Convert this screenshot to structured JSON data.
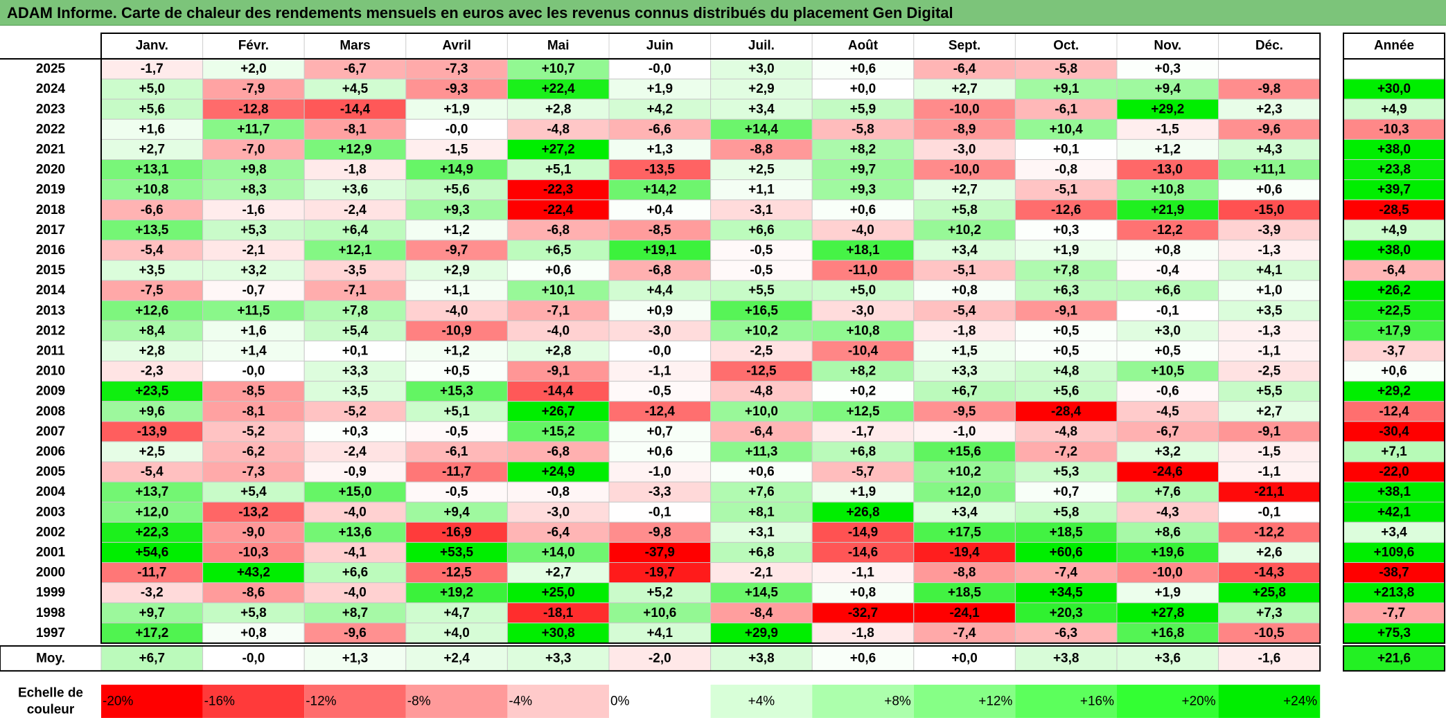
{
  "title": "ADAM Informe. Carte de chaleur des rendements mensuels en euros avec les revenus connus distribués du placement Gen Digital",
  "chart_data": {
    "type": "heatmap",
    "columns": [
      "Janv.",
      "Févr.",
      "Mars",
      "Avril",
      "Mai",
      "Juin",
      "Juil.",
      "Août",
      "Sept.",
      "Oct.",
      "Nov.",
      "Déc."
    ],
    "annual_label": "Année",
    "rows": [
      {
        "year": "2025",
        "values": [
          "-1,7",
          "+2,0",
          "-6,7",
          "-7,3",
          "+10,7",
          "-0,0",
          "+3,0",
          "+0,6",
          "-6,4",
          "-5,8",
          "+0,3",
          ""
        ],
        "annual": ""
      },
      {
        "year": "2024",
        "values": [
          "+5,0",
          "-7,9",
          "+4,5",
          "-9,3",
          "+22,4",
          "+1,9",
          "+2,9",
          "+0,0",
          "+2,7",
          "+9,1",
          "+9,4",
          "-9,8"
        ],
        "annual": "+30,0"
      },
      {
        "year": "2023",
        "values": [
          "+5,6",
          "-12,8",
          "-14,4",
          "+1,9",
          "+2,8",
          "+4,2",
          "+3,4",
          "+5,9",
          "-10,0",
          "-6,1",
          "+29,2",
          "+2,3"
        ],
        "annual": "+4,9"
      },
      {
        "year": "2022",
        "values": [
          "+1,6",
          "+11,7",
          "-8,1",
          "-0,0",
          "-4,8",
          "-6,6",
          "+14,4",
          "-5,8",
          "-8,9",
          "+10,4",
          "-1,5",
          "-9,6"
        ],
        "annual": "-10,3"
      },
      {
        "year": "2021",
        "values": [
          "+2,7",
          "-7,0",
          "+12,9",
          "-1,5",
          "+27,2",
          "+1,3",
          "-8,8",
          "+8,2",
          "-3,0",
          "+0,1",
          "+1,2",
          "+4,3"
        ],
        "annual": "+38,0"
      },
      {
        "year": "2020",
        "values": [
          "+13,1",
          "+9,8",
          "-1,8",
          "+14,9",
          "+5,1",
          "-13,5",
          "+2,5",
          "+9,7",
          "-10,0",
          "-0,8",
          "-13,0",
          "+11,1"
        ],
        "annual": "+23,8"
      },
      {
        "year": "2019",
        "values": [
          "+10,8",
          "+8,3",
          "+3,6",
          "+5,6",
          "-22,3",
          "+14,2",
          "+1,1",
          "+9,3",
          "+2,7",
          "-5,1",
          "+10,8",
          "+0,6"
        ],
        "annual": "+39,7"
      },
      {
        "year": "2018",
        "values": [
          "-6,6",
          "-1,6",
          "-2,4",
          "+9,3",
          "-22,4",
          "+0,4",
          "-3,1",
          "+0,6",
          "+5,8",
          "-12,6",
          "+21,9",
          "-15,0"
        ],
        "annual": "-28,5"
      },
      {
        "year": "2017",
        "values": [
          "+13,5",
          "+5,3",
          "+6,4",
          "+1,2",
          "-6,8",
          "-8,5",
          "+6,6",
          "-4,0",
          "+10,2",
          "+0,3",
          "-12,2",
          "-3,9"
        ],
        "annual": "+4,9"
      },
      {
        "year": "2016",
        "values": [
          "-5,4",
          "-2,1",
          "+12,1",
          "-9,7",
          "+6,5",
          "+19,1",
          "-0,5",
          "+18,1",
          "+3,4",
          "+1,9",
          "+0,8",
          "-1,3"
        ],
        "annual": "+38,0"
      },
      {
        "year": "2015",
        "values": [
          "+3,5",
          "+3,2",
          "-3,5",
          "+2,9",
          "+0,6",
          "-6,8",
          "-0,5",
          "-11,0",
          "-5,1",
          "+7,8",
          "-0,4",
          "+4,1"
        ],
        "annual": "-6,4"
      },
      {
        "year": "2014",
        "values": [
          "-7,5",
          "-0,7",
          "-7,1",
          "+1,1",
          "+10,1",
          "+4,4",
          "+5,5",
          "+5,0",
          "+0,8",
          "+6,3",
          "+6,6",
          "+1,0"
        ],
        "annual": "+26,2"
      },
      {
        "year": "2013",
        "values": [
          "+12,6",
          "+11,5",
          "+7,8",
          "-4,0",
          "-7,1",
          "+0,9",
          "+16,5",
          "-3,0",
          "-5,4",
          "-9,1",
          "-0,1",
          "+3,5"
        ],
        "annual": "+22,5"
      },
      {
        "year": "2012",
        "values": [
          "+8,4",
          "+1,6",
          "+5,4",
          "-10,9",
          "-4,0",
          "-3,0",
          "+10,2",
          "+10,8",
          "-1,8",
          "+0,5",
          "+3,0",
          "-1,3"
        ],
        "annual": "+17,9"
      },
      {
        "year": "2011",
        "values": [
          "+2,8",
          "+1,4",
          "+0,1",
          "+1,2",
          "+2,8",
          "-0,0",
          "-2,5",
          "-10,4",
          "+1,5",
          "+0,5",
          "+0,5",
          "-1,1"
        ],
        "annual": "-3,7"
      },
      {
        "year": "2010",
        "values": [
          "-2,3",
          "-0,0",
          "+3,3",
          "+0,5",
          "-9,1",
          "-1,1",
          "-12,5",
          "+8,2",
          "+3,3",
          "+4,8",
          "+10,5",
          "-2,5"
        ],
        "annual": "+0,6"
      },
      {
        "year": "2009",
        "values": [
          "+23,5",
          "-8,5",
          "+3,5",
          "+15,3",
          "-14,4",
          "-0,5",
          "-4,8",
          "+0,2",
          "+6,7",
          "+5,6",
          "-0,6",
          "+5,5"
        ],
        "annual": "+29,2"
      },
      {
        "year": "2008",
        "values": [
          "+9,6",
          "-8,1",
          "-5,2",
          "+5,1",
          "+26,7",
          "-12,4",
          "+10,0",
          "+12,5",
          "-9,5",
          "-28,4",
          "-4,5",
          "+2,7"
        ],
        "annual": "-12,4"
      },
      {
        "year": "2007",
        "values": [
          "-13,9",
          "-5,2",
          "+0,3",
          "-0,5",
          "+15,2",
          "+0,7",
          "-6,4",
          "-1,7",
          "-1,0",
          "-4,8",
          "-6,7",
          "-9,1"
        ],
        "annual": "-30,4"
      },
      {
        "year": "2006",
        "values": [
          "+2,5",
          "-6,2",
          "-2,4",
          "-6,1",
          "-6,8",
          "+0,6",
          "+11,3",
          "+6,8",
          "+15,6",
          "-7,2",
          "+3,2",
          "-1,5"
        ],
        "annual": "+7,1"
      },
      {
        "year": "2005",
        "values": [
          "-5,4",
          "-7,3",
          "-0,9",
          "-11,7",
          "+24,9",
          "-1,0",
          "+0,6",
          "-5,7",
          "+10,2",
          "+5,3",
          "-24,6",
          "-1,1"
        ],
        "annual": "-22,0"
      },
      {
        "year": "2004",
        "values": [
          "+13,7",
          "+5,4",
          "+15,0",
          "-0,5",
          "-0,8",
          "-3,3",
          "+7,6",
          "+1,9",
          "+12,0",
          "+0,7",
          "+7,6",
          "-21,1"
        ],
        "annual": "+38,1"
      },
      {
        "year": "2003",
        "values": [
          "+12,0",
          "-13,2",
          "-4,0",
          "+9,4",
          "-3,0",
          "-0,1",
          "+8,1",
          "+26,8",
          "+3,4",
          "+5,8",
          "-4,3",
          "-0,1"
        ],
        "annual": "+42,1"
      },
      {
        "year": "2002",
        "values": [
          "+22,3",
          "-9,0",
          "+13,6",
          "-16,9",
          "-6,4",
          "-9,8",
          "+3,1",
          "-14,9",
          "+17,5",
          "+18,5",
          "+8,6",
          "-12,2"
        ],
        "annual": "+3,4"
      },
      {
        "year": "2001",
        "values": [
          "+54,6",
          "-10,3",
          "-4,1",
          "+53,5",
          "+14,0",
          "-37,9",
          "+6,8",
          "-14,6",
          "-19,4",
          "+60,6",
          "+19,6",
          "+2,6"
        ],
        "annual": "+109,6"
      },
      {
        "year": "2000",
        "values": [
          "-11,7",
          "+43,2",
          "+6,6",
          "-12,5",
          "+2,7",
          "-19,7",
          "-2,1",
          "-1,1",
          "-8,8",
          "-7,4",
          "-10,0",
          "-14,3"
        ],
        "annual": "-38,7"
      },
      {
        "year": "1999",
        "values": [
          "-3,2",
          "-8,6",
          "-4,0",
          "+19,2",
          "+25,0",
          "+5,2",
          "+14,5",
          "+0,8",
          "+18,5",
          "+34,5",
          "+1,9",
          "+25,8"
        ],
        "annual": "+213,8"
      },
      {
        "year": "1998",
        "values": [
          "+9,7",
          "+5,8",
          "+8,7",
          "+4,7",
          "-18,1",
          "+10,6",
          "-8,4",
          "-32,7",
          "-24,1",
          "+20,3",
          "+27,8",
          "+7,3"
        ],
        "annual": "-7,7"
      },
      {
        "year": "1997",
        "values": [
          "+17,2",
          "+0,8",
          "-9,6",
          "+4,0",
          "+30,8",
          "+4,1",
          "+29,9",
          "-1,8",
          "-7,4",
          "-6,3",
          "+16,8",
          "-10,5"
        ],
        "annual": "+75,3"
      }
    ],
    "average": {
      "label": "Moy.",
      "values": [
        "+6,7",
        "-0,0",
        "+1,3",
        "+2,4",
        "+3,3",
        "-2,0",
        "+3,8",
        "+0,6",
        "+0,0",
        "+3,8",
        "+3,6",
        "-1,6"
      ],
      "annual": "+21,6"
    },
    "scale": {
      "label_line1": "Echelle de",
      "label_line2": "couleur",
      "items": [
        {
          "label": "-20%",
          "color": "#ff0000"
        },
        {
          "label": "-16%",
          "color": "#ff3a3a"
        },
        {
          "label": "-12%",
          "color": "#ff6c6c"
        },
        {
          "label": "-8%",
          "color": "#ff9a9a"
        },
        {
          "label": "-4%",
          "color": "#ffcaca"
        },
        {
          "label": "0%",
          "color": "#ffffff"
        },
        {
          "label": "+4%",
          "color": "#d8ffd8"
        },
        {
          "label": "+8%",
          "color": "#acffac"
        },
        {
          "label": "+12%",
          "color": "#86ff86"
        },
        {
          "label": "+16%",
          "color": "#5cff5c"
        },
        {
          "label": "+20%",
          "color": "#33ff33"
        },
        {
          "label": "+24%",
          "color": "#00ee00"
        }
      ]
    }
  }
}
